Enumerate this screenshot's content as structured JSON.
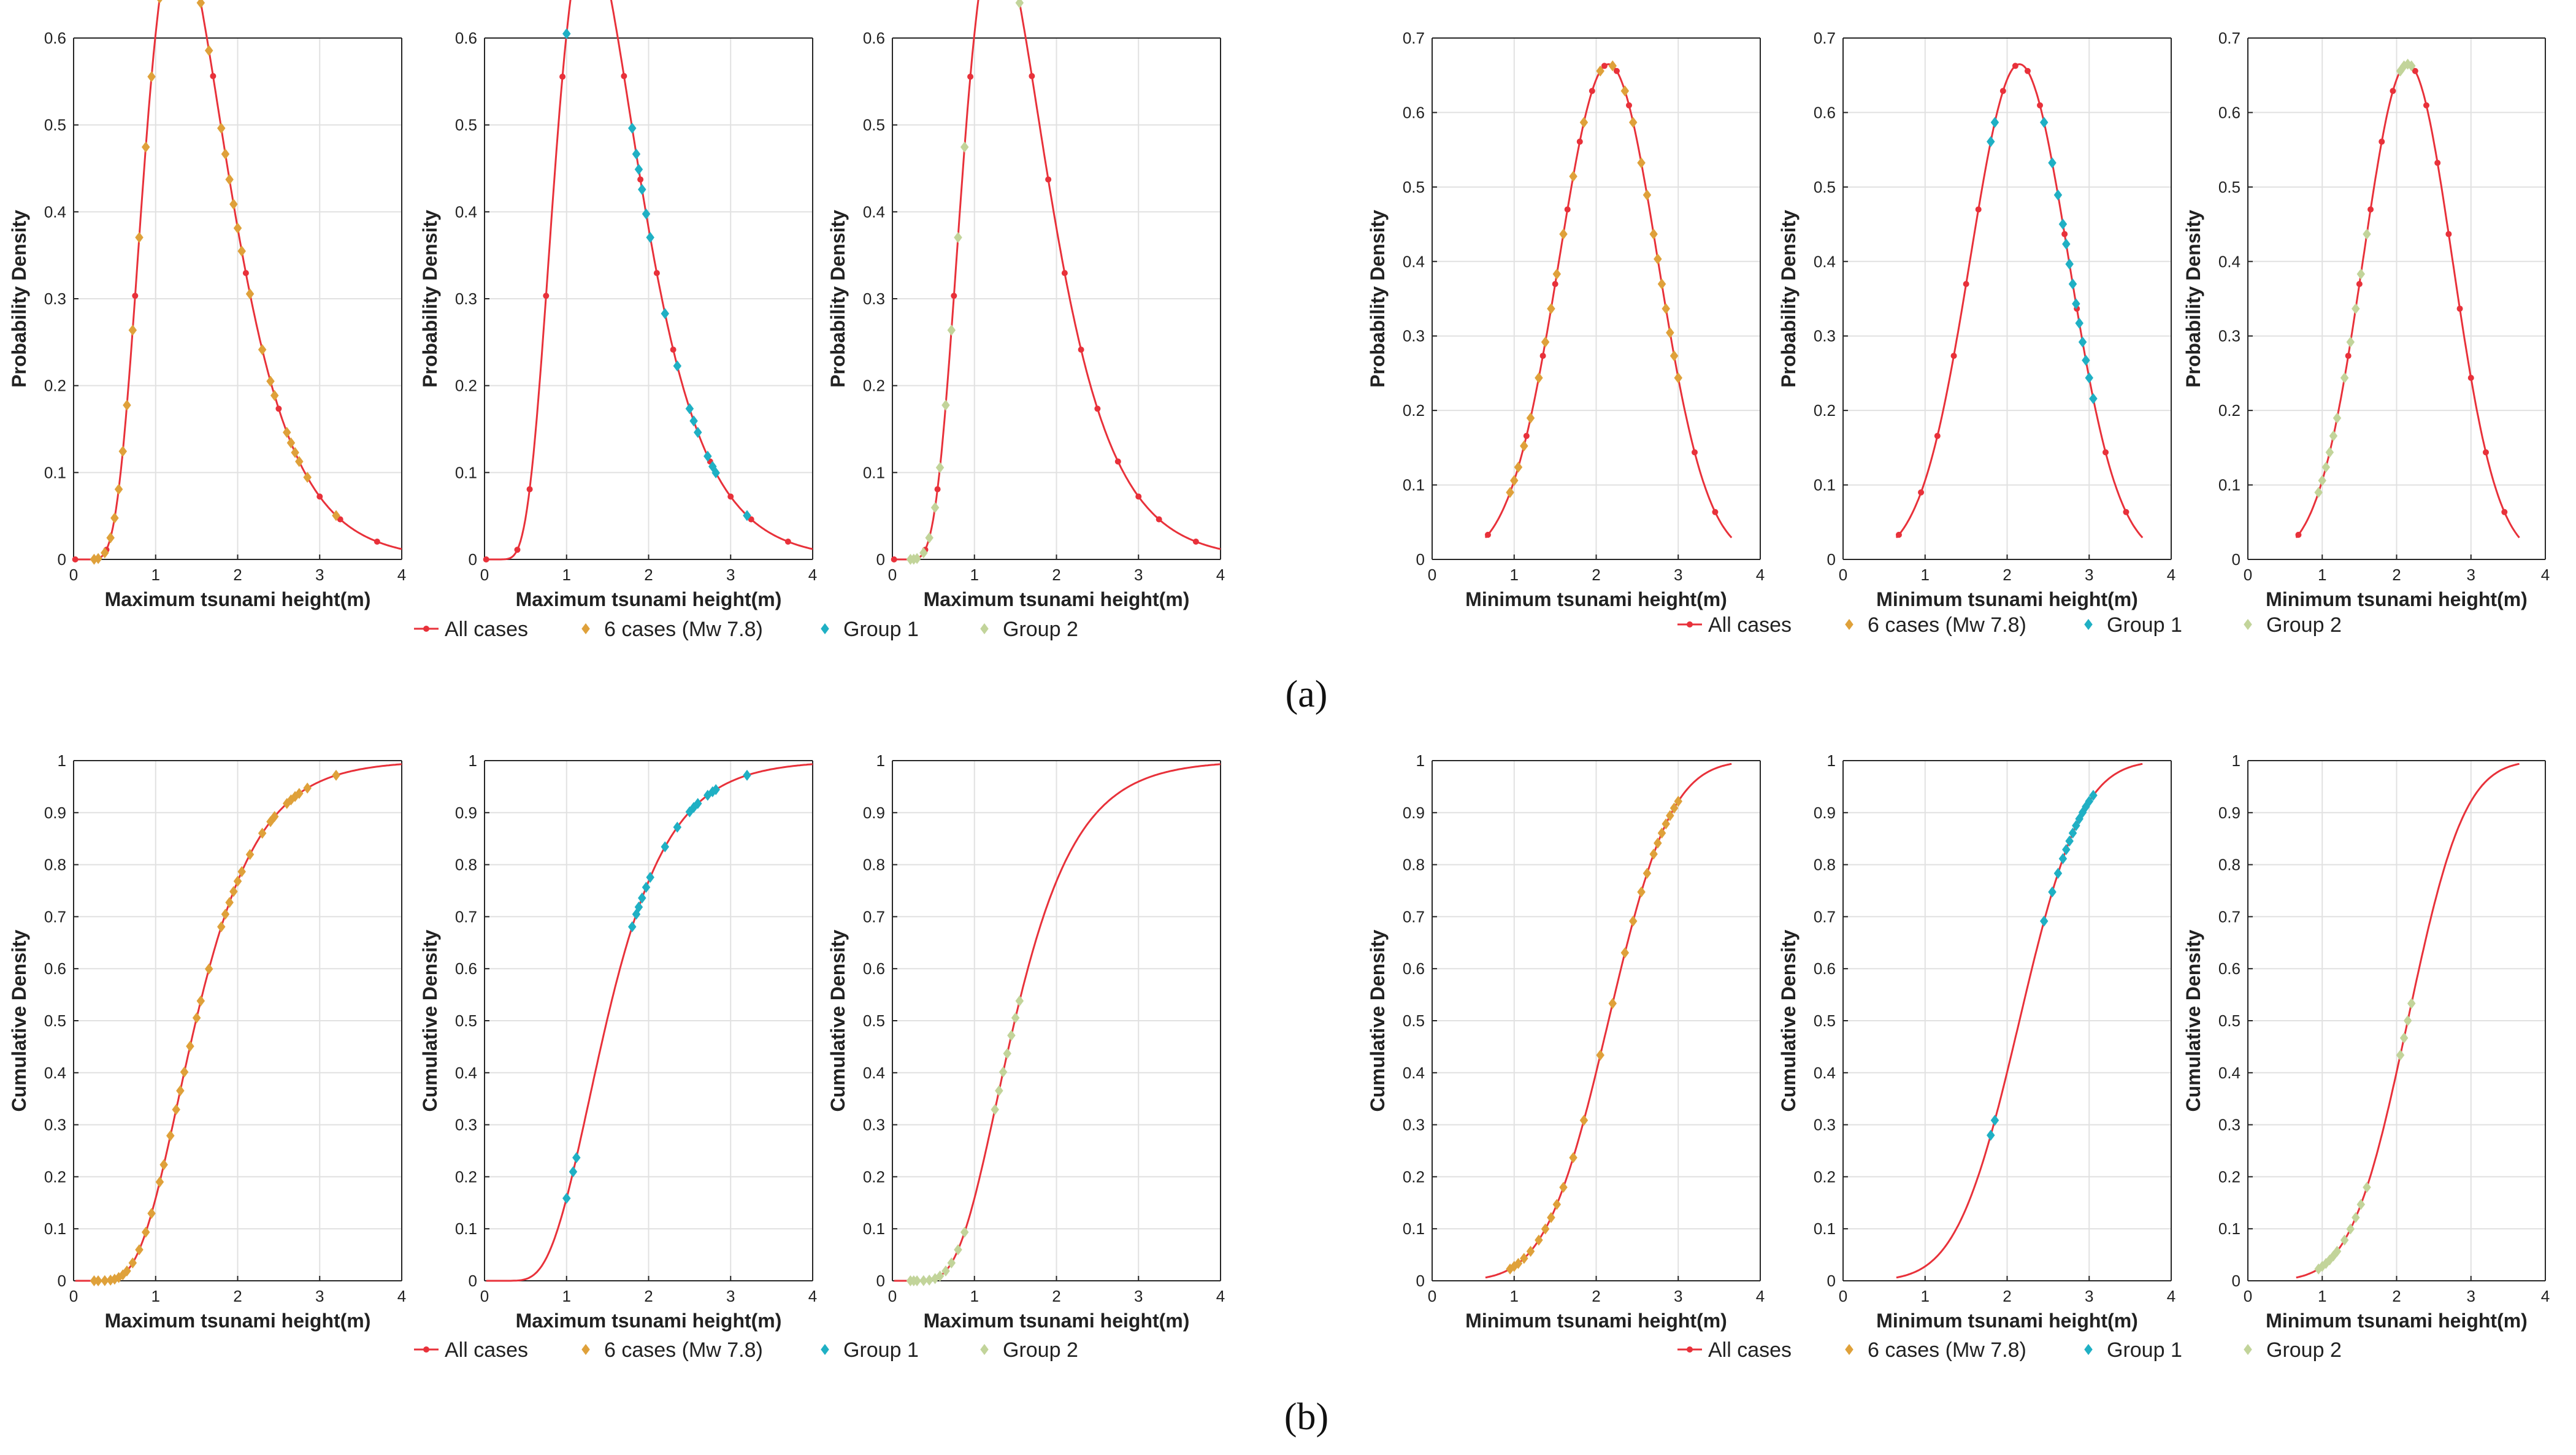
{
  "figure": {
    "panel_labels": [
      "(a)",
      "(b)"
    ],
    "colors": {
      "all_cases": "#e8313a",
      "six_cases": "#dfa13a",
      "group1": "#1fb0c4",
      "group2": "#c2d49a",
      "grid": "#e1e1e1",
      "axis": "#262626"
    },
    "legend": {
      "all_cases": "All cases",
      "six_cases": "6 cases (Mw 7.8)",
      "group1": "Group 1",
      "group2": "Group 2"
    },
    "pdf_ylabel": "Probability Density",
    "cdf_ylabel": "Cumulative Density"
  },
  "chart_data": [
    {
      "id": "a-max-6cases",
      "type": "line",
      "kind": "pdf",
      "variable": "max",
      "highlight": "six_cases",
      "xlabel": "Maximum tsunami height(m)",
      "ylabel": "Probability Density",
      "xlim": [
        0,
        4
      ],
      "ylim": [
        0,
        0.6
      ],
      "xticks": [
        0,
        1,
        2,
        3,
        4
      ],
      "yticks": [
        0,
        0.1,
        0.2,
        0.3,
        0.4,
        0.5,
        0.6
      ],
      "highlight_x": [
        0.25,
        0.3,
        0.38,
        0.45,
        0.5,
        0.55,
        0.6,
        0.65,
        0.72,
        0.8,
        0.88,
        0.95,
        1.05,
        1.1,
        1.18,
        1.25,
        1.3,
        1.35,
        1.42,
        1.5,
        1.55,
        1.65,
        1.8,
        1.85,
        1.9,
        1.95,
        2.0,
        2.05,
        2.15,
        2.3,
        2.4,
        2.45,
        2.6,
        2.65,
        2.7,
        2.75,
        2.85,
        3.2
      ]
    },
    {
      "id": "a-max-group1",
      "type": "line",
      "kind": "pdf",
      "variable": "max",
      "highlight": "group1",
      "xlabel": "Maximum tsunami height(m)",
      "ylabel": "Probability Density",
      "xlim": [
        0,
        4
      ],
      "ylim": [
        0,
        0.6
      ],
      "xticks": [
        0,
        1,
        2,
        3,
        4
      ],
      "yticks": [
        0,
        0.1,
        0.2,
        0.3,
        0.4,
        0.5,
        0.6
      ],
      "highlight_x": [
        1.0,
        1.08,
        1.12,
        1.8,
        1.85,
        1.88,
        1.92,
        1.97,
        2.02,
        2.2,
        2.35,
        2.5,
        2.55,
        2.6,
        2.72,
        2.78,
        2.82,
        3.2
      ]
    },
    {
      "id": "a-max-group2",
      "type": "line",
      "kind": "pdf",
      "variable": "max",
      "highlight": "group2",
      "xlabel": "Maximum tsunami height(m)",
      "ylabel": "Probability Density",
      "xlim": [
        0,
        4
      ],
      "ylim": [
        0,
        0.6
      ],
      "xticks": [
        0,
        1,
        2,
        3,
        4
      ],
      "yticks": [
        0,
        0.1,
        0.2,
        0.3,
        0.4,
        0.5,
        0.6
      ],
      "highlight_x": [
        0.22,
        0.26,
        0.3,
        0.38,
        0.45,
        0.52,
        0.58,
        0.65,
        0.72,
        0.8,
        0.88,
        1.25,
        1.3,
        1.35,
        1.4,
        1.45,
        1.5,
        1.55
      ]
    },
    {
      "id": "a-min-6cases",
      "type": "line",
      "kind": "pdf",
      "variable": "min",
      "highlight": "six_cases",
      "xlabel": "Minimum tsunami height(m)",
      "ylabel": "Probability Density",
      "xlim": [
        0,
        4
      ],
      "ylim": [
        0,
        0.7
      ],
      "xticks": [
        0,
        1,
        2,
        3,
        4
      ],
      "yticks": [
        0,
        0.1,
        0.2,
        0.3,
        0.4,
        0.5,
        0.6,
        0.7
      ],
      "highlight_x": [
        0.95,
        1.0,
        1.05,
        1.12,
        1.2,
        1.3,
        1.38,
        1.45,
        1.52,
        1.6,
        1.72,
        1.85,
        2.05,
        2.2,
        2.35,
        2.45,
        2.55,
        2.62,
        2.7,
        2.75,
        2.8,
        2.85,
        2.9,
        2.95,
        3.0
      ]
    },
    {
      "id": "a-min-group1",
      "type": "line",
      "kind": "pdf",
      "variable": "min",
      "highlight": "group1",
      "xlabel": "Minimum tsunami height(m)",
      "ylabel": "Probability Density",
      "xlim": [
        0,
        4
      ],
      "ylim": [
        0,
        0.7
      ],
      "xticks": [
        0,
        1,
        2,
        3,
        4
      ],
      "yticks": [
        0,
        0.1,
        0.2,
        0.3,
        0.4,
        0.5,
        0.6,
        0.7
      ],
      "highlight_x": [
        1.8,
        1.85,
        2.45,
        2.55,
        2.62,
        2.68,
        2.72,
        2.76,
        2.8,
        2.84,
        2.88,
        2.92,
        2.96,
        3.0,
        3.05
      ]
    },
    {
      "id": "a-min-group2",
      "type": "line",
      "kind": "pdf",
      "variable": "min",
      "highlight": "group2",
      "xlabel": "Minimum tsunami height(m)",
      "ylabel": "Probability Density",
      "xlim": [
        0,
        4
      ],
      "ylim": [
        0,
        0.7
      ],
      "xticks": [
        0,
        1,
        2,
        3,
        4
      ],
      "yticks": [
        0,
        0.1,
        0.2,
        0.3,
        0.4,
        0.5,
        0.6,
        0.7
      ],
      "highlight_x": [
        0.95,
        1.0,
        1.05,
        1.1,
        1.15,
        1.2,
        1.3,
        1.38,
        1.45,
        1.52,
        1.6,
        2.05,
        2.1,
        2.15,
        2.2
      ]
    },
    {
      "id": "b-max-6cases",
      "type": "line",
      "kind": "cdf",
      "variable": "max",
      "highlight": "six_cases",
      "xlabel": "Maximum tsunami height(m)",
      "ylabel": "Cumulative Density",
      "xlim": [
        0,
        4
      ],
      "ylim": [
        0,
        1
      ],
      "xticks": [
        0,
        1,
        2,
        3,
        4
      ],
      "yticks": [
        0,
        0.1,
        0.2,
        0.3,
        0.4,
        0.5,
        0.6,
        0.7,
        0.8,
        0.9,
        1
      ],
      "highlight_x": [
        0.25,
        0.3,
        0.38,
        0.45,
        0.5,
        0.55,
        0.6,
        0.65,
        0.72,
        0.8,
        0.88,
        0.95,
        1.05,
        1.1,
        1.18,
        1.25,
        1.3,
        1.35,
        1.42,
        1.5,
        1.55,
        1.65,
        1.8,
        1.85,
        1.9,
        1.95,
        2.0,
        2.05,
        2.15,
        2.3,
        2.4,
        2.45,
        2.6,
        2.65,
        2.7,
        2.75,
        2.85,
        3.2
      ]
    },
    {
      "id": "b-max-group1",
      "type": "line",
      "kind": "cdf",
      "variable": "max",
      "highlight": "group1",
      "xlabel": "Maximum tsunami height(m)",
      "ylabel": "Cumulative Density",
      "xlim": [
        0,
        4
      ],
      "ylim": [
        0,
        1
      ],
      "xticks": [
        0,
        1,
        2,
        3,
        4
      ],
      "yticks": [
        0,
        0.1,
        0.2,
        0.3,
        0.4,
        0.5,
        0.6,
        0.7,
        0.8,
        0.9,
        1
      ],
      "highlight_x": [
        1.0,
        1.08,
        1.12,
        1.8,
        1.85,
        1.88,
        1.92,
        1.97,
        2.02,
        2.2,
        2.35,
        2.5,
        2.55,
        2.6,
        2.72,
        2.78,
        2.82,
        3.2
      ]
    },
    {
      "id": "b-max-group2",
      "type": "line",
      "kind": "cdf",
      "variable": "max",
      "highlight": "group2",
      "xlabel": "Maximum tsunami height(m)",
      "ylabel": "Cumulative Density",
      "xlim": [
        0,
        4
      ],
      "ylim": [
        0,
        1
      ],
      "xticks": [
        0,
        1,
        2,
        3,
        4
      ],
      "yticks": [
        0,
        0.1,
        0.2,
        0.3,
        0.4,
        0.5,
        0.6,
        0.7,
        0.8,
        0.9,
        1
      ],
      "highlight_x": [
        0.22,
        0.26,
        0.3,
        0.38,
        0.45,
        0.52,
        0.58,
        0.65,
        0.72,
        0.8,
        0.88,
        1.25,
        1.3,
        1.35,
        1.4,
        1.45,
        1.5,
        1.55
      ]
    },
    {
      "id": "b-min-6cases",
      "type": "line",
      "kind": "cdf",
      "variable": "min",
      "highlight": "six_cases",
      "xlabel": "Minimum tsunami height(m)",
      "ylabel": "Cumulative Density",
      "xlim": [
        0,
        4
      ],
      "ylim": [
        0,
        1
      ],
      "xticks": [
        0,
        1,
        2,
        3,
        4
      ],
      "yticks": [
        0,
        0.1,
        0.2,
        0.3,
        0.4,
        0.5,
        0.6,
        0.7,
        0.8,
        0.9,
        1
      ],
      "highlight_x": [
        0.95,
        1.0,
        1.05,
        1.12,
        1.2,
        1.3,
        1.38,
        1.45,
        1.52,
        1.6,
        1.72,
        1.85,
        2.05,
        2.2,
        2.35,
        2.45,
        2.55,
        2.62,
        2.7,
        2.75,
        2.8,
        2.85,
        2.9,
        2.95,
        3.0
      ]
    },
    {
      "id": "b-min-group1",
      "type": "line",
      "kind": "cdf",
      "variable": "min",
      "highlight": "group1",
      "xlabel": "Minimum tsunami height(m)",
      "ylabel": "Cumulative Density",
      "xlim": [
        0,
        4
      ],
      "ylim": [
        0,
        1
      ],
      "xticks": [
        0,
        1,
        2,
        3,
        4
      ],
      "yticks": [
        0,
        0.1,
        0.2,
        0.3,
        0.4,
        0.5,
        0.6,
        0.7,
        0.8,
        0.9,
        1
      ],
      "highlight_x": [
        1.8,
        1.85,
        2.45,
        2.55,
        2.62,
        2.68,
        2.72,
        2.76,
        2.8,
        2.84,
        2.88,
        2.92,
        2.96,
        3.0,
        3.05
      ]
    },
    {
      "id": "b-min-group2",
      "type": "line",
      "kind": "cdf",
      "variable": "min",
      "highlight": "group2",
      "xlabel": "Minimum tsunami height(m)",
      "ylabel": "Cumulative Density",
      "xlim": [
        0,
        4
      ],
      "ylim": [
        0,
        1
      ],
      "xticks": [
        0,
        1,
        2,
        3,
        4
      ],
      "yticks": [
        0,
        0.1,
        0.2,
        0.3,
        0.4,
        0.5,
        0.6,
        0.7,
        0.8,
        0.9,
        1
      ],
      "highlight_x": [
        0.95,
        1.0,
        1.05,
        1.1,
        1.15,
        1.2,
        1.3,
        1.38,
        1.45,
        1.52,
        1.6,
        2.05,
        2.1,
        2.15,
        2.2
      ]
    }
  ],
  "distributions": {
    "max": {
      "family": "lognormal",
      "mu": 0.4,
      "sigma": 0.4,
      "x_range": [
        0.02,
        4.0
      ],
      "all_case_markers_x": [
        0.02,
        0.4,
        0.55,
        0.75,
        0.95,
        1.1,
        1.3,
        1.5,
        1.7,
        1.9,
        2.1,
        2.3,
        2.5,
        2.75,
        3.0,
        3.25,
        3.7
      ]
    },
    "min": {
      "family": "normal",
      "mu": 2.15,
      "sigma": 0.6,
      "x_range": [
        0.65,
        3.65
      ],
      "all_case_markers_x": [
        0.68,
        0.95,
        1.15,
        1.35,
        1.5,
        1.65,
        1.8,
        1.95,
        2.1,
        2.25,
        2.4,
        2.55,
        2.7,
        2.85,
        3.0,
        3.2,
        3.45
      ]
    }
  },
  "legends": [
    {
      "id": "legend-a-left",
      "items": [
        "all_cases",
        "six_cases",
        "group1",
        "group2"
      ]
    },
    {
      "id": "legend-a-right",
      "items": [
        "all_cases",
        "six_cases",
        "group1",
        "group2"
      ]
    },
    {
      "id": "legend-b-left",
      "items": [
        "all_cases",
        "six_cases",
        "group1",
        "group2"
      ]
    },
    {
      "id": "legend-b-right",
      "items": [
        "all_cases",
        "six_cases",
        "group1",
        "group2"
      ]
    }
  ]
}
